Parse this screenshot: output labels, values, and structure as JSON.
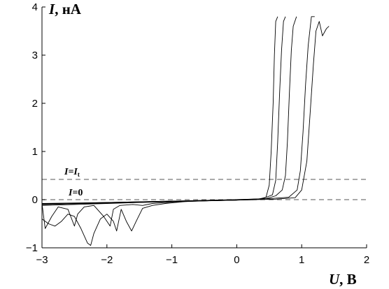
{
  "chart_data": {
    "type": "line",
    "xlabel": {
      "symbol": "U",
      "unit": ", В"
    },
    "ylabel": {
      "symbol": "I",
      "unit": ", нА"
    },
    "xlim": [
      -3,
      2
    ],
    "ylim": [
      -1,
      4
    ],
    "xticks": [
      -3,
      -2,
      -1,
      0,
      1,
      2
    ],
    "yticks": [
      -1,
      0,
      1,
      2,
      3,
      4
    ],
    "xtick_labels": [
      "−3",
      "−2",
      "−1",
      "0",
      "1",
      "2"
    ],
    "ytick_labels": [
      "−1",
      "0",
      "1",
      "2",
      "3",
      "4"
    ],
    "grid": false,
    "reference_lines": [
      {
        "y": 0.42,
        "style": "dashed",
        "label_main": "I",
        "label_rest": "=I",
        "label_sub": "t"
      },
      {
        "y": 0.0,
        "style": "dashed",
        "label_main": "I",
        "label_rest": "=0",
        "label_sub": ""
      }
    ],
    "series": [
      {
        "values": [
          [
            -3,
            -0.12
          ],
          [
            -2.5,
            -0.1
          ],
          [
            -2,
            -0.08
          ],
          [
            -1.5,
            -0.06
          ],
          [
            -1,
            -0.04
          ],
          [
            -0.5,
            -0.02
          ],
          [
            0,
            -0.01
          ],
          [
            0.3,
            0.0
          ],
          [
            0.45,
            0.05
          ],
          [
            0.5,
            0.3
          ],
          [
            0.53,
            1.0
          ],
          [
            0.56,
            2.0
          ],
          [
            0.58,
            3.0
          ],
          [
            0.6,
            3.7
          ],
          [
            0.63,
            3.8
          ]
        ]
      },
      {
        "values": [
          [
            -3,
            -0.1
          ],
          [
            -2,
            -0.07
          ],
          [
            -1,
            -0.04
          ],
          [
            0,
            -0.01
          ],
          [
            0.4,
            0.02
          ],
          [
            0.55,
            0.1
          ],
          [
            0.6,
            0.4
          ],
          [
            0.63,
            1.2
          ],
          [
            0.66,
            2.2
          ],
          [
            0.69,
            3.1
          ],
          [
            0.72,
            3.7
          ],
          [
            0.75,
            3.8
          ]
        ]
      },
      {
        "values": [
          [
            -3,
            -0.09
          ],
          [
            -2,
            -0.06
          ],
          [
            -1,
            -0.03
          ],
          [
            0,
            0.0
          ],
          [
            0.45,
            0.02
          ],
          [
            0.6,
            0.08
          ],
          [
            0.7,
            0.2
          ],
          [
            0.75,
            0.5
          ],
          [
            0.78,
            1.2
          ],
          [
            0.81,
            2.2
          ],
          [
            0.84,
            3.1
          ],
          [
            0.87,
            3.6
          ],
          [
            0.92,
            3.8
          ]
        ]
      },
      {
        "values": [
          [
            -3,
            -0.08
          ],
          [
            -2,
            -0.06
          ],
          [
            -1,
            -0.03
          ],
          [
            0,
            0.0
          ],
          [
            0.5,
            0.02
          ],
          [
            0.8,
            0.05
          ],
          [
            0.93,
            0.2
          ],
          [
            0.98,
            0.6
          ],
          [
            1.02,
            1.4
          ],
          [
            1.06,
            2.4
          ],
          [
            1.1,
            3.2
          ],
          [
            1.15,
            3.8
          ],
          [
            1.2,
            3.8
          ]
        ]
      },
      {
        "values": [
          [
            -3,
            -0.1
          ],
          [
            -2,
            -0.07
          ],
          [
            -1,
            -0.04
          ],
          [
            0,
            -0.01
          ],
          [
            0.6,
            0.01
          ],
          [
            0.9,
            0.04
          ],
          [
            1.0,
            0.2
          ],
          [
            1.08,
            0.8
          ],
          [
            1.13,
            1.8
          ],
          [
            1.18,
            2.8
          ],
          [
            1.22,
            3.5
          ],
          [
            1.27,
            3.7
          ],
          [
            1.32,
            3.4
          ],
          [
            1.38,
            3.55
          ],
          [
            1.42,
            3.6
          ]
        ]
      },
      {
        "values": [
          [
            -3,
            -0.4
          ],
          [
            -2.9,
            -0.5
          ],
          [
            -2.8,
            -0.55
          ],
          [
            -2.7,
            -0.45
          ],
          [
            -2.6,
            -0.3
          ],
          [
            -2.5,
            -0.35
          ],
          [
            -2.4,
            -0.6
          ],
          [
            -2.3,
            -0.9
          ],
          [
            -2.25,
            -0.95
          ],
          [
            -2.2,
            -0.7
          ],
          [
            -2.1,
            -0.4
          ],
          [
            -2.0,
            -0.3
          ],
          [
            -1.9,
            -0.45
          ],
          [
            -1.85,
            -0.65
          ],
          [
            -1.78,
            -0.2
          ],
          [
            -1.7,
            -0.45
          ],
          [
            -1.62,
            -0.65
          ],
          [
            -1.55,
            -0.45
          ],
          [
            -1.45,
            -0.18
          ],
          [
            -1.3,
            -0.12
          ],
          [
            -1.1,
            -0.08
          ],
          [
            -0.8,
            -0.04
          ],
          [
            -0.4,
            -0.02
          ],
          [
            0,
            -0.01
          ]
        ]
      },
      {
        "values": [
          [
            -3,
            -0.08
          ],
          [
            -2.95,
            -0.6
          ],
          [
            -2.85,
            -0.35
          ],
          [
            -2.75,
            -0.15
          ],
          [
            -2.6,
            -0.2
          ],
          [
            -2.5,
            -0.55
          ],
          [
            -2.45,
            -0.3
          ],
          [
            -2.35,
            -0.15
          ],
          [
            -2.2,
            -0.12
          ],
          [
            -2.05,
            -0.35
          ],
          [
            -1.95,
            -0.55
          ],
          [
            -1.9,
            -0.2
          ],
          [
            -1.8,
            -0.12
          ],
          [
            -1.6,
            -0.1
          ],
          [
            -1.45,
            -0.12
          ],
          [
            -1.3,
            -0.08
          ],
          [
            -1.0,
            -0.05
          ],
          [
            -0.6,
            -0.03
          ],
          [
            0,
            -0.01
          ]
        ]
      }
    ]
  }
}
